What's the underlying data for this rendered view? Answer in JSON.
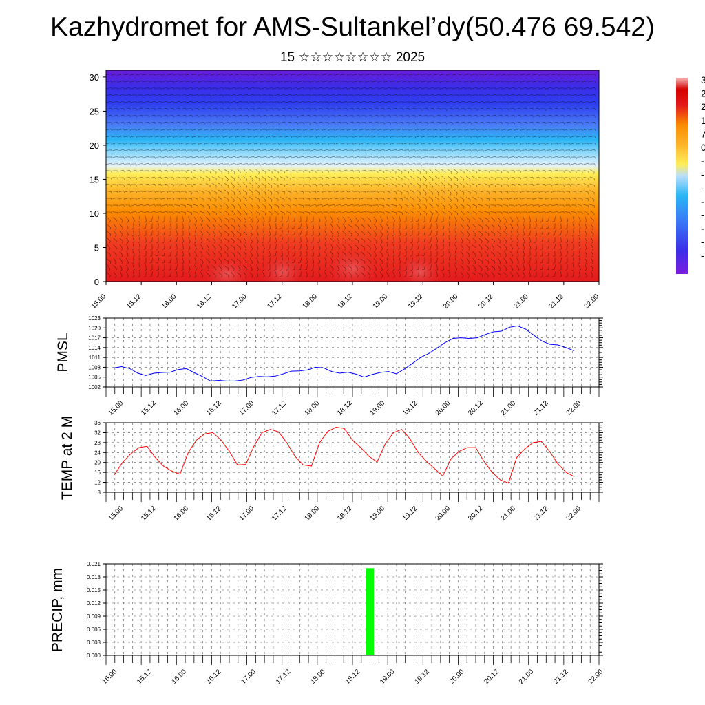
{
  "header": {
    "title": "Kazhydromet for AMS-Sultankel’dy(50.476 69.542)",
    "subtitle": "15 ☆☆☆☆☆☆☆☆ 2025"
  },
  "x_tick_labels": [
    "15.00",
    "15.12",
    "16.00",
    "16.12",
    "17.00",
    "17.12",
    "18.00",
    "18.12",
    "19.00",
    "19.12",
    "20.00",
    "20.12",
    "21.00",
    "21.12",
    "22.00"
  ],
  "chart_data": [
    {
      "id": "cross-section",
      "type": "heatmap",
      "y_ticks": [
        "0",
        "5",
        "10",
        "15",
        "20",
        "25",
        "30"
      ],
      "ylim": [
        0,
        31
      ],
      "colorbar_labels": [
        "3",
        "2",
        "2",
        "1",
        "7",
        "0",
        "-",
        "-",
        "-",
        "-",
        "-",
        "-",
        "-",
        "-"
      ],
      "colors": {
        "warm": "#e31a1c",
        "orange": "#fb8c00",
        "yellow": "#ffee58",
        "light_blue": "#bbdefb",
        "cyan": "#29b6f6",
        "blue": "#2f3ff0",
        "violet": "#6a1bd8"
      }
    },
    {
      "id": "pmsl",
      "type": "line",
      "ylabel": "PMSL",
      "y_ticks": [
        "1002",
        "1005",
        "1008",
        "1011",
        "1014",
        "1017",
        "1020",
        "1023"
      ],
      "ylim": [
        1002,
        1023
      ],
      "color": "#0000ff",
      "values": [
        1007.8,
        1008.2,
        1007.6,
        1006.2,
        1005.5,
        1006.2,
        1006.4,
        1006.5,
        1007.3,
        1007.6,
        1006.3,
        1005.2,
        1003.8,
        1004.0,
        1003.8,
        1003.8,
        1004.1,
        1004.9,
        1005.2,
        1005.1,
        1005.3,
        1006.0,
        1006.8,
        1006.9,
        1007.2,
        1008.0,
        1007.8,
        1006.7,
        1006.2,
        1006.5,
        1005.9,
        1005.0,
        1005.8,
        1006.4,
        1006.7,
        1006.0,
        1007.5,
        1009.2,
        1011.0,
        1012.2,
        1013.8,
        1015.5,
        1016.8,
        1017.0,
        1016.8,
        1017.0,
        1018.0,
        1018.8,
        1019.0,
        1020.2,
        1020.6,
        1019.6,
        1017.8,
        1016.0,
        1015.0,
        1014.8,
        1014.0,
        1013.0
      ]
    },
    {
      "id": "temp",
      "type": "line",
      "ylabel": "TEMP at 2 M",
      "y_ticks": [
        "8",
        "12",
        "16",
        "20",
        "24",
        "28",
        "32",
        "36"
      ],
      "ylim": [
        8,
        36
      ],
      "color": "#ff0000",
      "values": [
        15.0,
        20.0,
        23.5,
        26.0,
        26.5,
        22.0,
        18.5,
        16.5,
        15.3,
        24.0,
        29.0,
        31.5,
        32.0,
        29.0,
        24.5,
        19.0,
        19.2,
        26.5,
        32.0,
        33.3,
        32.3,
        28.0,
        22.5,
        19.0,
        18.5,
        28.0,
        32.5,
        34.2,
        33.7,
        29.0,
        26.0,
        22.5,
        20.2,
        27.5,
        32.0,
        33.3,
        29.5,
        24.0,
        20.5,
        17.5,
        14.5,
        21.5,
        24.5,
        26.0,
        26.0,
        20.5,
        16.0,
        13.0,
        11.7,
        22.0,
        25.5,
        28.0,
        28.5,
        24.5,
        19.5,
        16.0,
        14.3
      ]
    },
    {
      "id": "precip",
      "type": "bar",
      "ylabel": "PRECIP, mm",
      "y_ticks": [
        "0.000",
        "0.003",
        "0.006",
        "0.009",
        "0.012",
        "0.015",
        "0.018",
        "0.021"
      ],
      "ylim": [
        0,
        0.021
      ],
      "color": "#00ff00",
      "bars": [
        {
          "x_hours": 90,
          "value": 0.02
        }
      ]
    }
  ]
}
